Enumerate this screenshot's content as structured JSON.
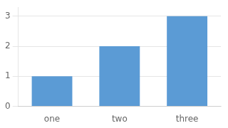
{
  "chart_data": {
    "type": "bar",
    "categories": [
      "one",
      "two",
      "three"
    ],
    "values": [
      1,
      2,
      3
    ],
    "color": "#5b9bd5",
    "ylim": [
      0,
      3.3
    ],
    "yticks": [
      0,
      1,
      2,
      3
    ],
    "grid": true
  }
}
